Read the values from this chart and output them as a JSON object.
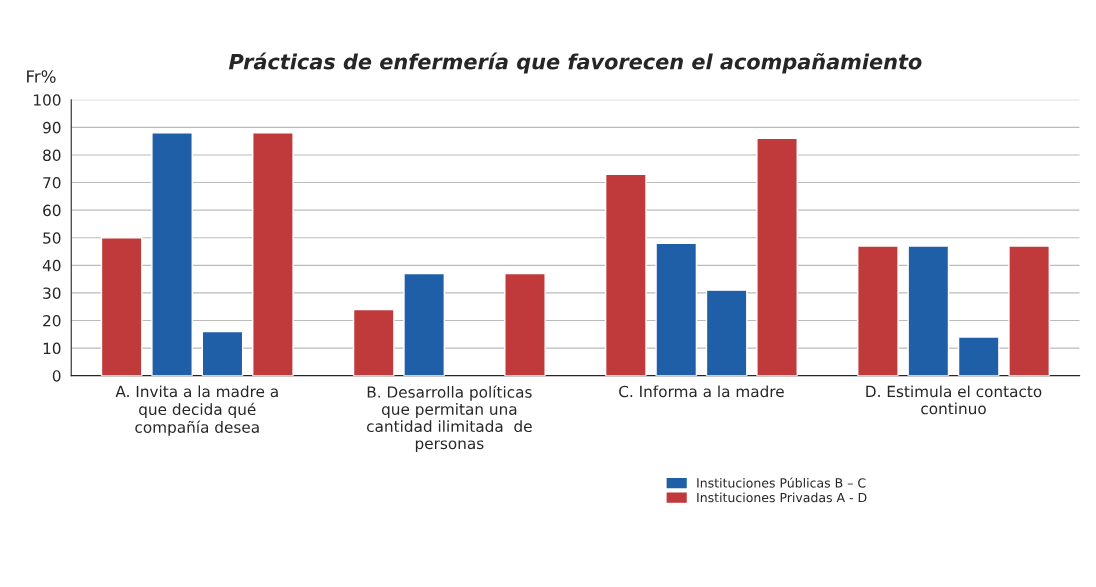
{
  "chart_data": {
    "type": "bar",
    "title": "Prácticas de enfermería que favorecen el acompañamiento",
    "ylabel": "Fr%",
    "categories": [
      "A. Invita a la madre a\nque decida qué\ncompañía desea",
      "B. Desarrolla políticas\nque permitan una\ncantidad ilimitada  de\npersonas",
      "C. Informa a la madre",
      "D. Estimula el contacto\ncontinuo"
    ],
    "series": [
      {
        "color": "#c0393b",
        "values": [
          50,
          24,
          73,
          47
        ]
      },
      {
        "name": "Instituciones Públicas B – C",
        "color": "#1f5fa8",
        "values": [
          88,
          37,
          48,
          47
        ]
      },
      {
        "color": "#1f5fa8",
        "values": [
          16,
          null,
          31,
          14
        ]
      },
      {
        "name": "Instituciones Privadas A - D",
        "color": "#c0393b",
        "values": [
          88,
          37,
          86,
          47
        ]
      }
    ],
    "ylim": [
      0,
      100
    ],
    "yticks": [
      0,
      10,
      20,
      30,
      40,
      50,
      60,
      70,
      80,
      90,
      100
    ],
    "grid": "y",
    "legend": "bottom right"
  }
}
